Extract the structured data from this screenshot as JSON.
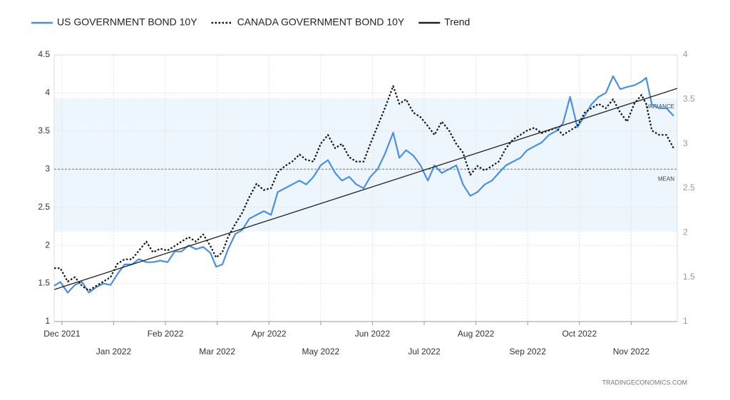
{
  "chart_data": {
    "type": "line",
    "x": [
      -0.15,
      -0.03,
      0.11,
      0.25,
      0.39,
      0.52,
      0.66,
      0.8,
      0.94,
      1.07,
      1.21,
      1.35,
      1.49,
      1.63,
      1.76,
      1.9,
      2.04,
      2.18,
      2.31,
      2.45,
      2.59,
      2.73,
      2.87,
      2.98,
      3.1,
      3.21,
      3.35,
      3.48,
      3.62,
      3.76,
      3.9,
      4.04,
      4.17,
      4.31,
      4.45,
      4.59,
      4.72,
      4.86,
      5.0,
      5.14,
      5.28,
      5.41,
      5.55,
      5.69,
      5.83,
      5.96,
      6.1,
      6.24,
      6.4,
      6.52,
      6.65,
      6.79,
      6.93,
      7.07,
      7.2,
      7.34,
      7.48,
      7.62,
      7.75,
      7.89,
      8.03,
      8.17,
      8.31,
      8.44,
      8.58,
      8.72,
      8.86,
      8.99,
      9.13,
      9.27,
      9.41,
      9.55,
      9.68,
      9.82,
      9.96,
      10.1,
      10.23,
      10.37,
      10.51,
      10.65,
      10.79,
      10.92,
      11.06,
      11.2,
      11.29,
      11.4,
      11.54,
      11.68,
      11.82
    ],
    "series": [
      {
        "name": "US GOVERNMENT BOND 10Y",
        "color": "#4a90e2",
        "style": "solid",
        "values": [
          1.47,
          1.52,
          1.38,
          1.48,
          1.52,
          1.38,
          1.45,
          1.5,
          1.48,
          1.62,
          1.75,
          1.75,
          1.82,
          1.78,
          1.78,
          1.8,
          1.78,
          1.92,
          1.92,
          2.0,
          1.95,
          1.98,
          1.9,
          1.72,
          1.75,
          1.95,
          2.15,
          2.2,
          2.35,
          2.4,
          2.45,
          2.4,
          2.7,
          2.75,
          2.8,
          2.85,
          2.8,
          2.9,
          3.05,
          3.12,
          2.95,
          2.85,
          2.9,
          2.8,
          2.75,
          2.9,
          3.0,
          3.2,
          3.48,
          3.15,
          3.25,
          3.18,
          3.05,
          2.85,
          3.05,
          2.95,
          3.0,
          3.05,
          2.8,
          2.65,
          2.7,
          2.8,
          2.85,
          2.95,
          3.05,
          3.1,
          3.15,
          3.25,
          3.3,
          3.35,
          3.45,
          3.5,
          3.6,
          3.95,
          3.55,
          3.7,
          3.85,
          3.95,
          4.0,
          4.22,
          4.05,
          4.08,
          4.1,
          4.15,
          4.2,
          3.85,
          3.8,
          3.8,
          3.7
        ]
      },
      {
        "name": "CANADA GOVERNMENT BOND 10Y",
        "color": "#111111",
        "style": "dotted",
        "axis": "y2",
        "values": [
          1.6,
          1.6,
          1.45,
          1.5,
          1.4,
          1.35,
          1.4,
          1.45,
          1.5,
          1.65,
          1.7,
          1.7,
          1.8,
          1.9,
          1.78,
          1.82,
          1.8,
          1.85,
          1.9,
          1.95,
          1.9,
          1.98,
          1.85,
          1.72,
          1.78,
          1.95,
          2.1,
          2.22,
          2.4,
          2.55,
          2.48,
          2.5,
          2.68,
          2.75,
          2.8,
          2.88,
          2.82,
          2.8,
          3.0,
          3.1,
          2.95,
          3.0,
          2.85,
          2.8,
          2.8,
          3.0,
          3.2,
          3.4,
          3.65,
          3.45,
          3.5,
          3.35,
          3.3,
          3.2,
          3.1,
          3.25,
          3.15,
          3.0,
          2.9,
          2.65,
          2.75,
          2.7,
          2.75,
          2.8,
          2.95,
          3.05,
          3.1,
          3.15,
          3.18,
          3.12,
          3.15,
          3.18,
          3.1,
          3.15,
          3.2,
          3.35,
          3.4,
          3.45,
          3.4,
          3.5,
          3.35,
          3.25,
          3.45,
          3.55,
          3.45,
          3.15,
          3.1,
          3.1,
          2.95
        ]
      },
      {
        "name": "Trend",
        "color": "#222222",
        "style": "solid",
        "x": [
          -0.15,
          11.89
        ],
        "values": [
          1.42,
          4.06
        ]
      }
    ],
    "xlim": [
      -0.15,
      11.89
    ],
    "xticks": [
      {
        "value": 0,
        "label": "Dec 2021"
      },
      {
        "value": 1,
        "label": "Jan 2022"
      },
      {
        "value": 2,
        "label": "Feb 2022"
      },
      {
        "value": 3,
        "label": "Mar 2022"
      },
      {
        "value": 4,
        "label": "Apr 2022"
      },
      {
        "value": 5,
        "label": "May 2022"
      },
      {
        "value": 6,
        "label": "Jun 2022"
      },
      {
        "value": 7,
        "label": "Jul 2022"
      },
      {
        "value": 8,
        "label": "Aug 2022"
      },
      {
        "value": 9,
        "label": "Sep 2022"
      },
      {
        "value": 10,
        "label": "Oct 2022"
      },
      {
        "value": 11,
        "label": "Nov 2022"
      }
    ],
    "ylim": [
      1,
      4.5
    ],
    "yticks": [
      1,
      1.5,
      2,
      2.5,
      3,
      3.5,
      4,
      4.5
    ],
    "y2lim": [
      1,
      4
    ],
    "y2ticks": [
      1,
      1.5,
      2,
      2.5,
      3,
      3.5,
      4
    ],
    "grid": true,
    "mean_line": {
      "value": 3,
      "label": "MEAN"
    },
    "variance_band": {
      "range": [
        2.18,
        3.93
      ],
      "label": "VARIANCE"
    },
    "source": "TRADINGECONOMICS.COM"
  }
}
